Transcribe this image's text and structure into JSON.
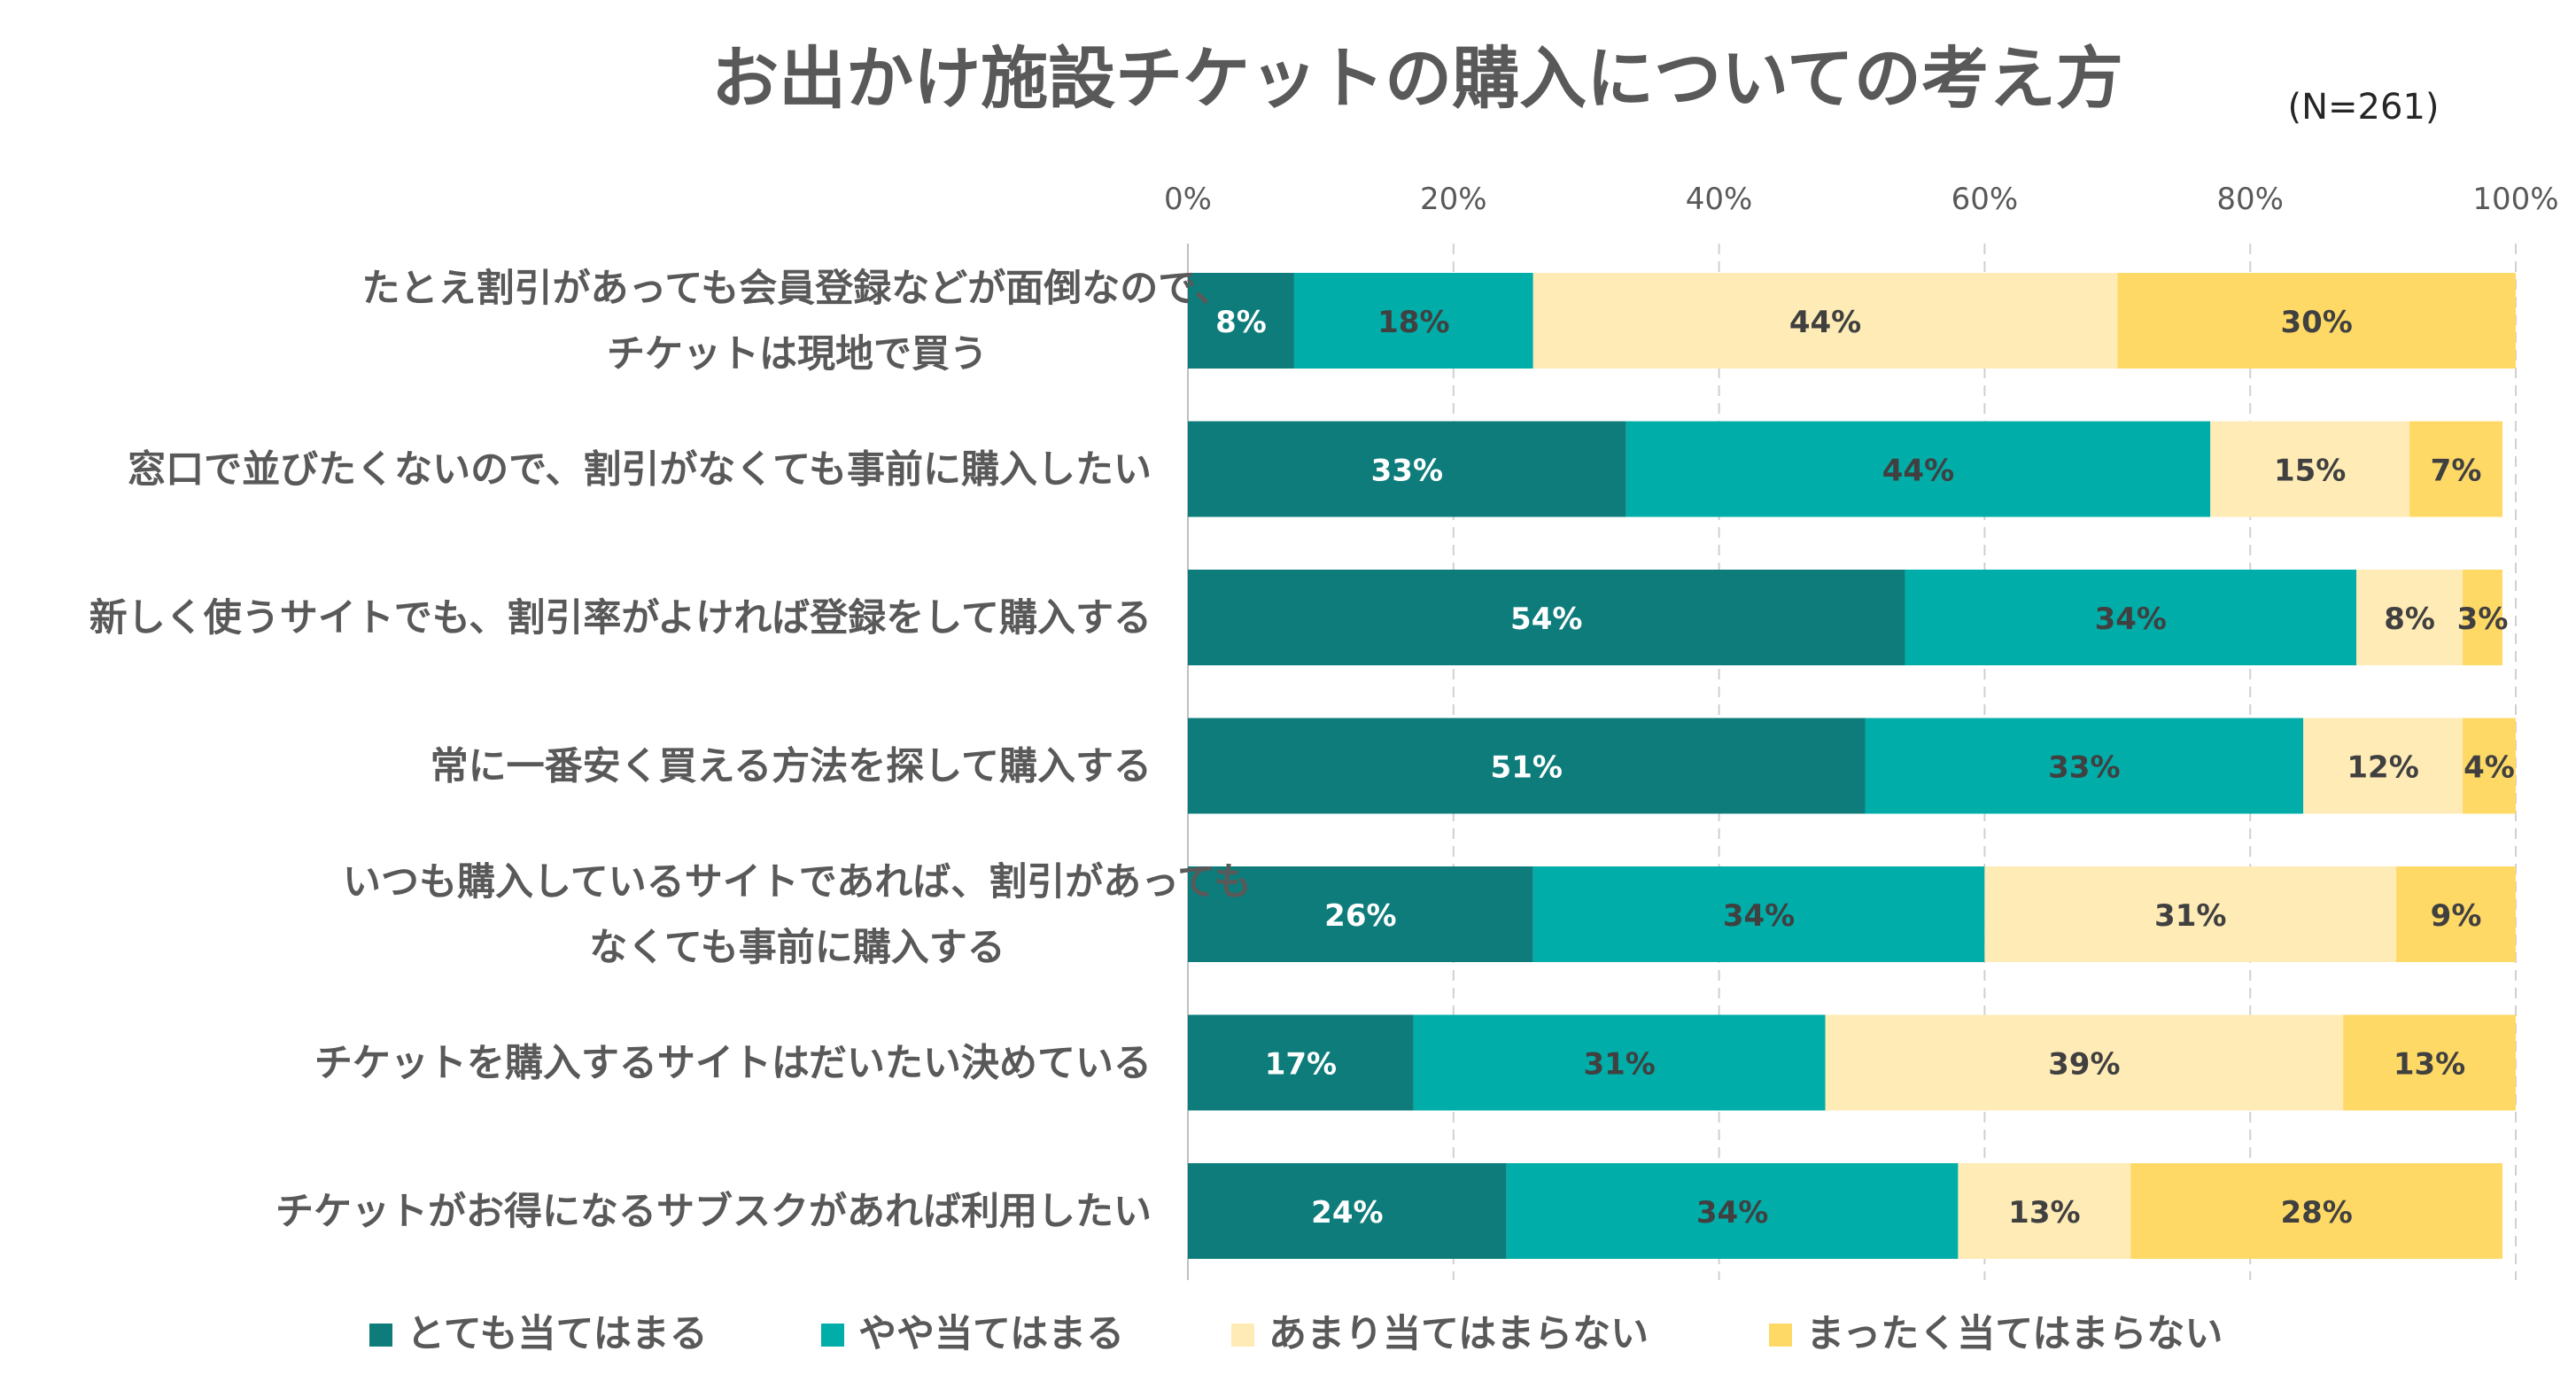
{
  "chart_data": {
    "type": "bar",
    "orientation": "horizontal",
    "stacked": true,
    "title": "お出かけ施設チケットの購入についての考え方",
    "subtitle": "(N=261)",
    "xlabel": "",
    "ylabel": "",
    "xlim": [
      0,
      100
    ],
    "x_ticks": [
      "0%",
      "20%",
      "40%",
      "60%",
      "80%",
      "100%"
    ],
    "grid": true,
    "legend_position": "bottom",
    "categories": [
      [
        "たとえ割引があっても会員登録などが面倒なので、",
        "チケットは現地で買う"
      ],
      [
        "窓口で並びたくないので、割引がなくても事前に購入したい"
      ],
      [
        "新しく使うサイトでも、割引率がよければ登録をして購入する"
      ],
      [
        "常に一番安く買える方法を探して購入する"
      ],
      [
        "いつも購入しているサイトであれば、割引があっても",
        "なくても事前に購入する"
      ],
      [
        "チケットを購入するサイトはだいたい決めている"
      ],
      [
        "チケットがお得になるサブスクがあれば利用したい"
      ]
    ],
    "series": [
      {
        "name": "とても当てはまる",
        "color": "#0E7C7B",
        "label_color": "#ffffff",
        "values": [
          8,
          33,
          54,
          51,
          26,
          17,
          24
        ]
      },
      {
        "name": "やや当てはまる",
        "color": "#00ADA9",
        "label_color": "#404040",
        "values": [
          18,
          44,
          34,
          33,
          34,
          31,
          34
        ]
      },
      {
        "name": "あまり当てはまらない",
        "color": "#FFEBB6",
        "label_color": "#404040",
        "values": [
          44,
          15,
          8,
          12,
          31,
          39,
          13
        ]
      },
      {
        "name": "まったく当てはまらない",
        "color": "#FFD966",
        "label_color": "#404040",
        "values": [
          30,
          7,
          3,
          4,
          9,
          13,
          28
        ]
      }
    ]
  }
}
